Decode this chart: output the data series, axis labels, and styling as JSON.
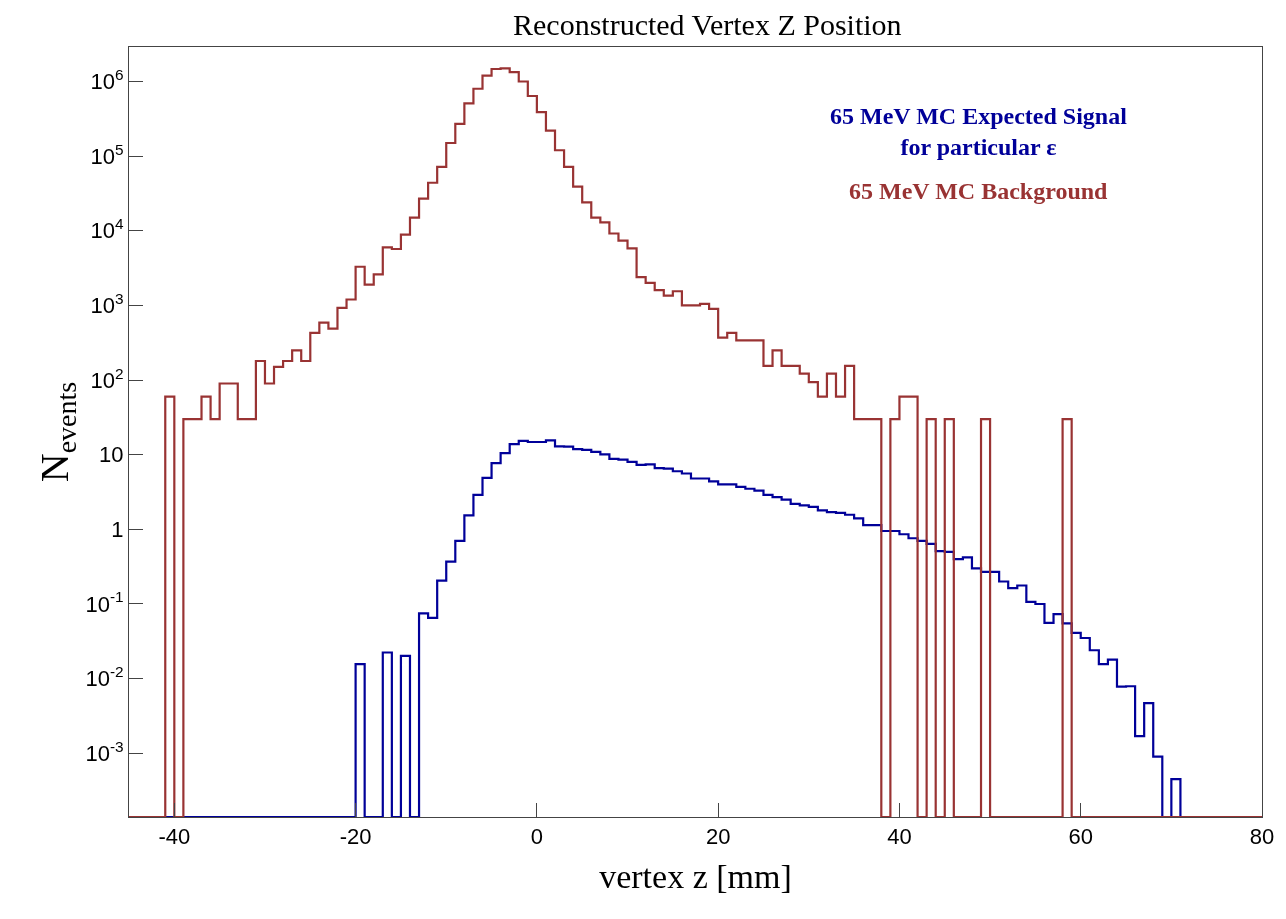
{
  "chart_data": {
    "type": "histogram",
    "title": "Reconstructed Vertex Z Position",
    "xlabel": "vertex z [mm]",
    "ylabel": "N$_{events}$",
    "bins": [
      -45,
      -44,
      -43,
      -42,
      -41,
      -40,
      -39,
      -38,
      -37,
      -36,
      -35,
      -34,
      -33,
      -32,
      -31,
      -30,
      -29,
      -28,
      -27,
      -26,
      -25,
      -24,
      -23,
      -22,
      -21,
      -20,
      -19,
      -18,
      -17,
      -16,
      -15,
      -14,
      -13,
      -12,
      -11,
      -10,
      -9,
      -8,
      -7,
      -6,
      -5,
      -4,
      -3,
      -2,
      -1,
      0,
      1,
      2,
      3,
      4,
      5,
      6,
      7,
      8,
      9,
      10,
      11,
      12,
      13,
      14,
      15,
      16,
      17,
      18,
      19,
      20,
      21,
      22,
      23,
      24,
      25,
      26,
      27,
      28,
      29,
      30,
      31,
      32,
      33,
      34,
      35,
      36,
      37,
      38,
      39,
      40,
      41,
      42,
      43,
      44,
      45,
      46,
      47,
      48,
      49,
      50,
      51,
      52,
      53,
      54,
      55,
      56,
      57,
      58,
      59,
      60,
      61,
      62,
      63,
      64,
      65,
      66,
      67,
      68,
      69,
      70,
      71,
      72,
      73,
      74,
      75,
      76,
      77,
      78,
      79,
      80
    ],
    "series": [
      {
        "name": "65 MeV MC Expected Signal\nfor particular ε",
        "color": "#000099",
        "values": [
          null,
          null,
          null,
          null,
          null,
          null,
          null,
          null,
          null,
          null,
          null,
          null,
          null,
          null,
          null,
          null,
          null,
          null,
          null,
          null,
          null,
          null,
          null,
          null,
          null,
          0.0156,
          null,
          null,
          0.0224,
          null,
          0.0202,
          null,
          0.075,
          0.065,
          0.205,
          0.37,
          0.7,
          1.54,
          2.9,
          4.9,
          7.7,
          10.5,
          13.9,
          15.3,
          14.8,
          14.8,
          15.6,
          12.9,
          12.8,
          11.9,
          11.6,
          10.9,
          10.1,
          8.8,
          8.6,
          8.0,
          7.3,
          7.4,
          6.6,
          6.5,
          6.0,
          5.6,
          4.8,
          4.8,
          4.4,
          4.0,
          4.0,
          3.7,
          3.5,
          3.3,
          2.9,
          2.7,
          2.5,
          2.2,
          2.1,
          2.0,
          1.8,
          1.7,
          1.66,
          1.57,
          1.4,
          1.14,
          1.14,
          0.95,
          0.95,
          0.86,
          0.76,
          0.7,
          0.64,
          0.51,
          0.5,
          0.4,
          0.42,
          0.3,
          0.27,
          0.27,
          0.2,
          0.163,
          0.177,
          0.107,
          0.1,
          0.056,
          0.073,
          0.055,
          0.041,
          0.035,
          0.024,
          0.0156,
          0.018,
          0.0078,
          0.0079,
          0.0017,
          0.0047,
          0.0009,
          null,
          0.00045,
          null,
          null,
          null,
          null,
          null,
          null,
          null,
          null,
          null
        ]
      },
      {
        "name": "65 MeV MC Background",
        "color": "#993333",
        "values": [
          null,
          null,
          null,
          null,
          60,
          null,
          30,
          30,
          60,
          30,
          90,
          90,
          30,
          30,
          180,
          90,
          150,
          180,
          250,
          180,
          430,
          590,
          490,
          930,
          1200,
          3300,
          1900,
          2600,
          6000,
          5700,
          8900,
          15000,
          27000,
          44000,
          72000,
          150000,
          270000,
          510000,
          800000,
          1200000,
          1470000,
          1500000,
          1340000,
          1000000,
          640000,
          390000,
          220000,
          120000,
          72000,
          39000,
          24000,
          15000,
          13000,
          9200,
          7400,
          5800,
          2400,
          2000,
          1600,
          1350,
          1550,
          1000,
          1000,
          1050,
          900,
          370,
          430,
          340,
          340,
          340,
          155,
          250,
          155,
          155,
          122,
          94,
          60,
          122,
          60,
          155,
          30,
          30,
          30,
          null,
          30,
          60,
          60,
          null,
          30,
          null,
          30,
          null,
          null,
          null,
          30,
          null,
          null,
          null,
          null,
          null,
          null,
          null,
          null,
          30,
          null,
          null,
          null,
          null,
          null,
          null,
          null,
          null,
          null,
          null,
          null,
          null,
          null,
          null,
          null,
          null,
          null,
          null,
          null,
          null,
          null
        ]
      }
    ],
    "log": "y",
    "xlim": [
      -45,
      80
    ],
    "xticks": [
      -40,
      -20,
      0,
      20,
      40,
      60,
      80
    ],
    "ylim": [
      0.00014,
      2900000
    ],
    "yticks": [
      {
        "value": 0.001,
        "label": "10$^{-3}$"
      },
      {
        "value": 0.01,
        "label": "10$^{-2}$"
      },
      {
        "value": 0.1,
        "label": "10$^{-1}$"
      },
      {
        "value": 1,
        "label": "1"
      },
      {
        "value": 10,
        "label": "10"
      },
      {
        "value": 100,
        "label": "10$^{2}$"
      },
      {
        "value": 1000,
        "label": "10$^{3}$"
      },
      {
        "value": 10000,
        "label": "10$^{4}$"
      },
      {
        "value": 100000,
        "label": "10$^{5}$"
      },
      {
        "value": 1000000,
        "label": "10$^{6}$"
      }
    ],
    "legend": "top right"
  }
}
